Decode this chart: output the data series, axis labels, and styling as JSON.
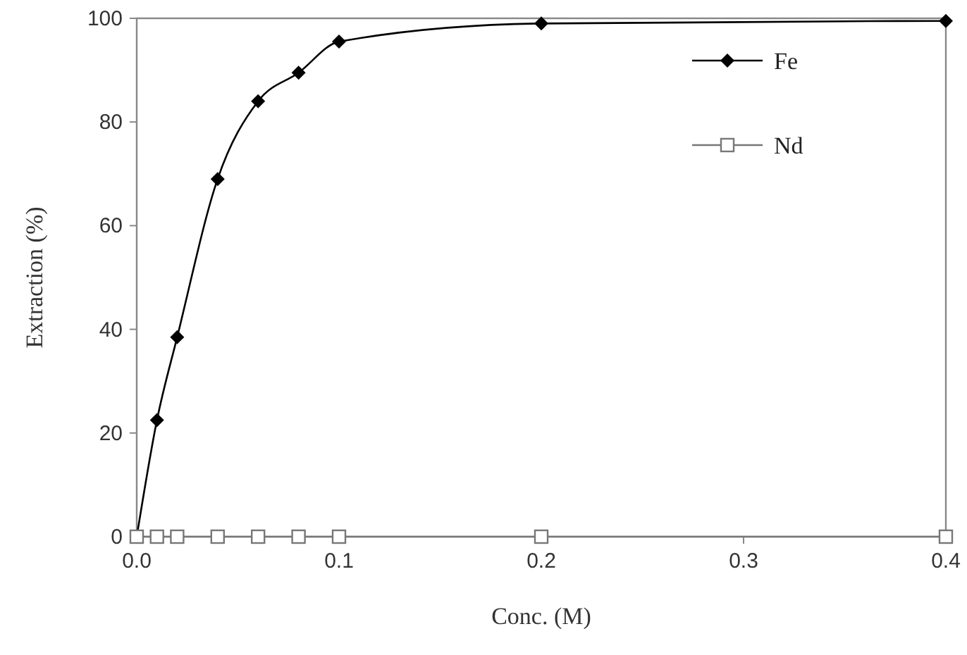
{
  "chart_data": {
    "type": "line",
    "xlabel": "Conc. (M)",
    "ylabel": "Extraction (%)",
    "xlim": [
      0,
      0.4
    ],
    "xticks": [
      {
        "value": 0,
        "label": "0.0"
      },
      {
        "value": 0.1,
        "label": "0.1"
      },
      {
        "value": 0.2,
        "label": "0.2"
      },
      {
        "value": 0.3,
        "label": "0.3"
      },
      {
        "value": 0.4,
        "label": "0.4"
      }
    ],
    "ylim": [
      0,
      100
    ],
    "yticks": [
      0,
      20,
      40,
      60,
      80,
      100
    ],
    "grid": false,
    "legend": "top right",
    "line_style": "solid",
    "series": [
      {
        "name": "Fe",
        "color": "#000000",
        "marker": "diamond",
        "x": [
          0,
          0.01,
          0.02,
          0.04,
          0.06,
          0.08,
          0.1,
          0.2,
          0.4
        ],
        "values": [
          0,
          22.5,
          38.5,
          69,
          84,
          89.5,
          95.5,
          99,
          99.5
        ]
      },
      {
        "name": "Nd",
        "color": "#777777",
        "marker": "square",
        "x": [
          0,
          0.01,
          0.02,
          0.04,
          0.06,
          0.08,
          0.1,
          0.2,
          0.4
        ],
        "values": [
          0,
          0,
          0,
          0,
          0,
          0,
          0,
          0,
          0
        ]
      }
    ]
  }
}
